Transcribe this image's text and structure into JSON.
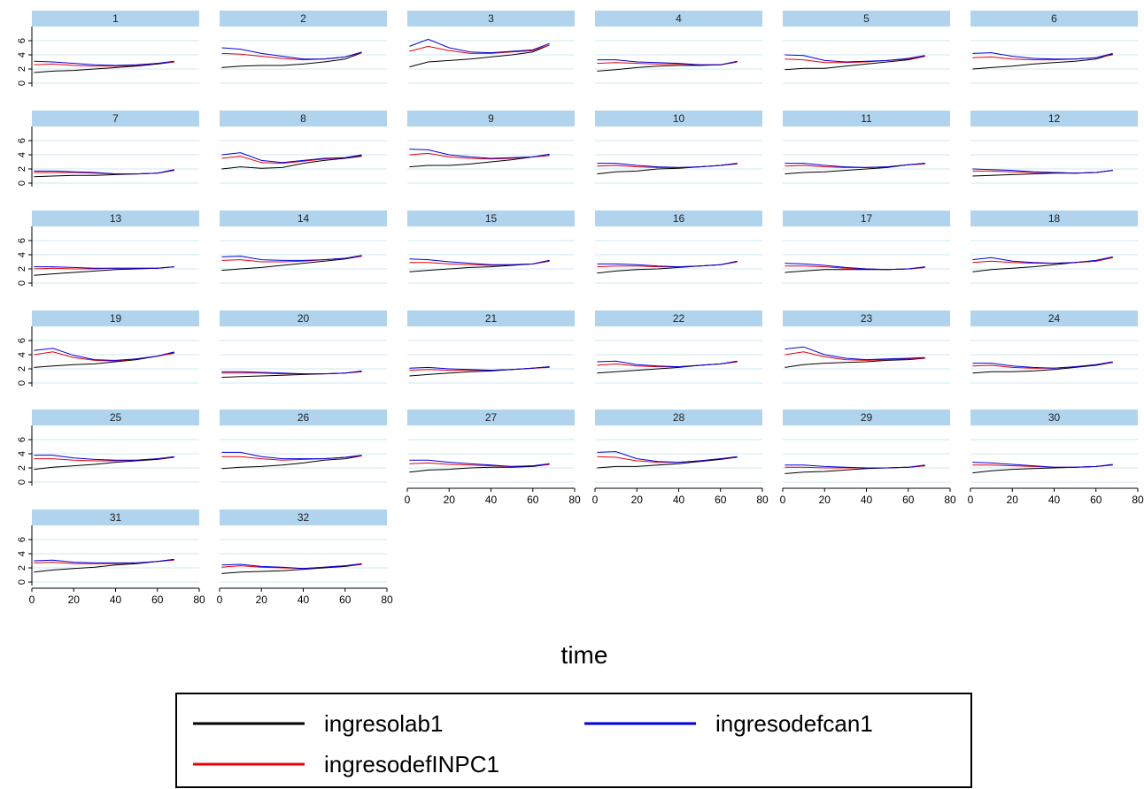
{
  "chart_data": {
    "type": "line",
    "facet_by": "panel",
    "panels": [
      "1",
      "2",
      "3",
      "4",
      "5",
      "6",
      "7",
      "8",
      "9",
      "10",
      "11",
      "12",
      "13",
      "14",
      "15",
      "16",
      "17",
      "18",
      "19",
      "20",
      "21",
      "22",
      "23",
      "24",
      "25",
      "26",
      "27",
      "28",
      "29",
      "30",
      "31",
      "32"
    ],
    "xlabel": "time",
    "xlim": [
      0,
      80
    ],
    "ylim": [
      -0.5,
      8
    ],
    "x_ticks": [
      0,
      20,
      40,
      60,
      80
    ],
    "y_ticks": [
      0,
      2,
      4,
      6
    ],
    "y_tick_labels": [
      "0",
      "2",
      "4",
      "6"
    ],
    "grid": true,
    "legend_position": "bottom",
    "x": [
      1,
      10,
      20,
      30,
      40,
      50,
      60,
      68
    ],
    "series": [
      {
        "name": "ingresolab1",
        "color": "#000000"
      },
      {
        "name": "ingresodefINPC1",
        "color": "#e8000b"
      },
      {
        "name": "ingresodefcan1",
        "color": "#0000dd"
      }
    ],
    "panel_values": {
      "1": {
        "ingresolab1": [
          1.5,
          1.7,
          1.8,
          2.0,
          2.2,
          2.4,
          2.7,
          3.0
        ],
        "ingresodefINPC1": [
          2.6,
          2.7,
          2.5,
          2.4,
          2.4,
          2.5,
          2.8,
          3.0
        ],
        "ingresodefcan1": [
          3.1,
          3.0,
          2.8,
          2.6,
          2.5,
          2.6,
          2.8,
          3.1
        ]
      },
      "2": {
        "ingresolab1": [
          2.2,
          2.4,
          2.5,
          2.5,
          2.7,
          3.0,
          3.4,
          4.3
        ],
        "ingresodefINPC1": [
          4.2,
          4.1,
          3.8,
          3.5,
          3.3,
          3.4,
          3.7,
          4.3
        ],
        "ingresodefcan1": [
          5.0,
          4.8,
          4.2,
          3.8,
          3.4,
          3.4,
          3.7,
          4.4
        ]
      },
      "3": {
        "ingresolab1": [
          2.3,
          3.0,
          3.2,
          3.4,
          3.7,
          4.0,
          4.4,
          5.4
        ],
        "ingresodefINPC1": [
          4.5,
          5.2,
          4.6,
          4.2,
          4.2,
          4.4,
          4.6,
          5.4
        ],
        "ingresodefcan1": [
          5.2,
          6.2,
          5.0,
          4.4,
          4.3,
          4.5,
          4.7,
          5.6
        ]
      },
      "4": {
        "ingresolab1": [
          1.7,
          1.9,
          2.2,
          2.4,
          2.5,
          2.5,
          2.6,
          3.0
        ],
        "ingresodefINPC1": [
          2.8,
          2.9,
          2.8,
          2.7,
          2.7,
          2.6,
          2.6,
          3.0
        ],
        "ingresodefcan1": [
          3.3,
          3.3,
          3.0,
          2.9,
          2.8,
          2.6,
          2.6,
          3.1
        ]
      },
      "5": {
        "ingresolab1": [
          1.9,
          2.1,
          2.1,
          2.4,
          2.7,
          3.0,
          3.3,
          3.8
        ],
        "ingresodefINPC1": [
          3.4,
          3.3,
          2.9,
          2.9,
          3.0,
          3.2,
          3.4,
          3.8
        ],
        "ingresodefcan1": [
          4.0,
          3.9,
          3.2,
          3.0,
          3.1,
          3.2,
          3.5,
          3.9
        ]
      },
      "6": {
        "ingresolab1": [
          2.0,
          2.2,
          2.4,
          2.7,
          2.9,
          3.1,
          3.4,
          4.1
        ],
        "ingresodefINPC1": [
          3.6,
          3.7,
          3.4,
          3.3,
          3.3,
          3.4,
          3.6,
          4.0
        ],
        "ingresodefcan1": [
          4.2,
          4.3,
          3.8,
          3.5,
          3.4,
          3.4,
          3.6,
          4.2
        ]
      },
      "7": {
        "ingresolab1": [
          0.9,
          1.0,
          1.1,
          1.1,
          1.2,
          1.3,
          1.4,
          1.8
        ],
        "ingresodefINPC1": [
          1.5,
          1.5,
          1.5,
          1.4,
          1.3,
          1.3,
          1.4,
          1.8
        ],
        "ingresodefcan1": [
          1.7,
          1.7,
          1.6,
          1.5,
          1.3,
          1.3,
          1.4,
          1.9
        ]
      },
      "8": {
        "ingresolab1": [
          2.0,
          2.3,
          2.1,
          2.2,
          2.8,
          3.2,
          3.5,
          3.8
        ],
        "ingresodefINPC1": [
          3.5,
          3.8,
          2.9,
          2.8,
          3.1,
          3.4,
          3.6,
          3.9
        ],
        "ingresodefcan1": [
          4.0,
          4.3,
          3.2,
          2.9,
          3.2,
          3.5,
          3.6,
          4.0
        ]
      },
      "9": {
        "ingresolab1": [
          2.3,
          2.5,
          2.5,
          2.7,
          3.0,
          3.3,
          3.7,
          3.9
        ],
        "ingresodefINPC1": [
          4.0,
          4.2,
          3.7,
          3.5,
          3.4,
          3.5,
          3.7,
          3.9
        ],
        "ingresodefcan1": [
          4.8,
          4.7,
          4.0,
          3.7,
          3.5,
          3.6,
          3.7,
          4.1
        ]
      },
      "10": {
        "ingresolab1": [
          1.3,
          1.6,
          1.7,
          2.0,
          2.1,
          2.3,
          2.5,
          2.8
        ],
        "ingresodefINPC1": [
          2.4,
          2.5,
          2.3,
          2.2,
          2.2,
          2.3,
          2.5,
          2.7
        ],
        "ingresodefcan1": [
          2.8,
          2.8,
          2.5,
          2.3,
          2.2,
          2.3,
          2.5,
          2.8
        ]
      },
      "11": {
        "ingresolab1": [
          1.3,
          1.5,
          1.6,
          1.8,
          2.0,
          2.2,
          2.6,
          2.8
        ],
        "ingresodefINPC1": [
          2.4,
          2.5,
          2.3,
          2.2,
          2.2,
          2.3,
          2.6,
          2.7
        ],
        "ingresodefcan1": [
          2.8,
          2.8,
          2.5,
          2.3,
          2.2,
          2.3,
          2.6,
          2.8
        ]
      },
      "12": {
        "ingresolab1": [
          1.0,
          1.1,
          1.2,
          1.3,
          1.4,
          1.4,
          1.5,
          1.8
        ],
        "ingresodefINPC1": [
          1.7,
          1.7,
          1.6,
          1.5,
          1.5,
          1.4,
          1.5,
          1.8
        ],
        "ingresodefcan1": [
          2.0,
          1.9,
          1.8,
          1.6,
          1.5,
          1.4,
          1.5,
          1.8
        ]
      },
      "13": {
        "ingresolab1": [
          1.1,
          1.3,
          1.5,
          1.7,
          1.9,
          2.0,
          2.1,
          2.3
        ],
        "ingresodefINPC1": [
          2.0,
          2.1,
          2.0,
          2.0,
          2.1,
          2.1,
          2.1,
          2.3
        ],
        "ingresodefcan1": [
          2.3,
          2.3,
          2.2,
          2.1,
          2.1,
          2.1,
          2.1,
          2.3
        ]
      },
      "14": {
        "ingresolab1": [
          1.8,
          2.0,
          2.2,
          2.5,
          2.8,
          3.1,
          3.4,
          3.8
        ],
        "ingresodefINPC1": [
          3.2,
          3.3,
          3.0,
          3.0,
          3.1,
          3.3,
          3.5,
          3.8
        ],
        "ingresodefcan1": [
          3.7,
          3.8,
          3.3,
          3.2,
          3.2,
          3.3,
          3.5,
          3.9
        ]
      },
      "15": {
        "ingresolab1": [
          1.6,
          1.8,
          2.0,
          2.2,
          2.3,
          2.5,
          2.7,
          3.2
        ],
        "ingresodefINPC1": [
          2.9,
          2.9,
          2.7,
          2.6,
          2.5,
          2.6,
          2.7,
          3.1
        ],
        "ingresodefcan1": [
          3.4,
          3.3,
          3.0,
          2.8,
          2.6,
          2.6,
          2.7,
          3.2
        ]
      },
      "16": {
        "ingresolab1": [
          1.4,
          1.7,
          1.9,
          2.0,
          2.2,
          2.4,
          2.6,
          3.0
        ],
        "ingresodefINPC1": [
          2.3,
          2.4,
          2.4,
          2.3,
          2.3,
          2.4,
          2.6,
          3.0
        ],
        "ingresodefcan1": [
          2.7,
          2.7,
          2.6,
          2.4,
          2.3,
          2.4,
          2.6,
          3.1
        ]
      },
      "17": {
        "ingresolab1": [
          1.5,
          1.7,
          1.9,
          1.9,
          1.9,
          1.9,
          2.0,
          2.2
        ],
        "ingresodefINPC1": [
          2.4,
          2.4,
          2.3,
          2.1,
          2.0,
          1.9,
          2.0,
          2.2
        ],
        "ingresodefcan1": [
          2.8,
          2.7,
          2.5,
          2.2,
          2.0,
          1.9,
          2.0,
          2.3
        ]
      },
      "18": {
        "ingresolab1": [
          1.6,
          1.9,
          2.1,
          2.3,
          2.6,
          2.9,
          3.1,
          3.6
        ],
        "ingresodefINPC1": [
          2.9,
          3.1,
          2.9,
          2.8,
          2.8,
          2.9,
          3.1,
          3.6
        ],
        "ingresodefcan1": [
          3.3,
          3.6,
          3.1,
          2.9,
          2.8,
          2.9,
          3.2,
          3.7
        ]
      },
      "19": {
        "ingresolab1": [
          2.2,
          2.4,
          2.6,
          2.7,
          3.0,
          3.3,
          3.8,
          4.3
        ],
        "ingresodefINPC1": [
          4.0,
          4.4,
          3.6,
          3.2,
          3.1,
          3.4,
          3.8,
          4.2
        ],
        "ingresodefcan1": [
          4.6,
          4.9,
          3.9,
          3.3,
          3.2,
          3.4,
          3.8,
          4.4
        ]
      },
      "20": {
        "ingresolab1": [
          0.8,
          0.9,
          1.0,
          1.1,
          1.2,
          1.3,
          1.4,
          1.6
        ],
        "ingresodefINPC1": [
          1.4,
          1.4,
          1.4,
          1.3,
          1.3,
          1.3,
          1.4,
          1.6
        ],
        "ingresodefcan1": [
          1.6,
          1.6,
          1.5,
          1.4,
          1.3,
          1.3,
          1.4,
          1.7
        ]
      },
      "21": {
        "ingresolab1": [
          1.0,
          1.2,
          1.4,
          1.6,
          1.7,
          1.9,
          2.1,
          2.3
        ],
        "ingresodefINPC1": [
          1.8,
          1.9,
          1.8,
          1.8,
          1.8,
          1.9,
          2.1,
          2.2
        ],
        "ingresodefcan1": [
          2.1,
          2.2,
          2.0,
          1.9,
          1.8,
          1.9,
          2.1,
          2.3
        ]
      },
      "22": {
        "ingresolab1": [
          1.4,
          1.6,
          1.8,
          2.0,
          2.2,
          2.5,
          2.7,
          3.0
        ],
        "ingresodefINPC1": [
          2.5,
          2.7,
          2.4,
          2.3,
          2.3,
          2.5,
          2.7,
          3.0
        ],
        "ingresodefcan1": [
          3.0,
          3.1,
          2.6,
          2.4,
          2.3,
          2.5,
          2.7,
          3.1
        ]
      },
      "23": {
        "ingresolab1": [
          2.2,
          2.6,
          2.8,
          2.9,
          3.0,
          3.2,
          3.3,
          3.5
        ],
        "ingresodefINPC1": [
          4.0,
          4.4,
          3.7,
          3.3,
          3.2,
          3.3,
          3.4,
          3.5
        ],
        "ingresodefcan1": [
          4.8,
          5.1,
          4.0,
          3.5,
          3.3,
          3.4,
          3.5,
          3.6
        ]
      },
      "24": {
        "ingresolab1": [
          1.4,
          1.6,
          1.6,
          1.7,
          1.9,
          2.2,
          2.5,
          2.9
        ],
        "ingresodefINPC1": [
          2.4,
          2.5,
          2.2,
          2.1,
          2.1,
          2.3,
          2.6,
          2.9
        ],
        "ingresodefcan1": [
          2.8,
          2.8,
          2.4,
          2.2,
          2.1,
          2.3,
          2.6,
          3.0
        ]
      },
      "25": {
        "ingresolab1": [
          1.8,
          2.1,
          2.3,
          2.5,
          2.8,
          3.0,
          3.2,
          3.5
        ],
        "ingresodefINPC1": [
          3.3,
          3.3,
          3.1,
          3.0,
          3.0,
          3.1,
          3.3,
          3.5
        ],
        "ingresodefcan1": [
          3.8,
          3.8,
          3.4,
          3.2,
          3.1,
          3.1,
          3.3,
          3.6
        ]
      },
      "26": {
        "ingresolab1": [
          1.9,
          2.1,
          2.2,
          2.4,
          2.7,
          3.1,
          3.3,
          3.7
        ],
        "ingresodefINPC1": [
          3.6,
          3.6,
          3.3,
          3.1,
          3.2,
          3.3,
          3.5,
          3.7
        ],
        "ingresodefcan1": [
          4.2,
          4.2,
          3.6,
          3.3,
          3.3,
          3.3,
          3.5,
          3.8
        ]
      },
      "27": {
        "ingresolab1": [
          1.4,
          1.7,
          1.8,
          2.0,
          2.1,
          2.1,
          2.2,
          2.5
        ],
        "ingresodefINPC1": [
          2.6,
          2.7,
          2.5,
          2.4,
          2.3,
          2.2,
          2.3,
          2.5
        ],
        "ingresodefcan1": [
          3.1,
          3.1,
          2.8,
          2.6,
          2.4,
          2.2,
          2.3,
          2.6
        ]
      },
      "28": {
        "ingresolab1": [
          2.0,
          2.2,
          2.2,
          2.4,
          2.6,
          2.9,
          3.2,
          3.5
        ],
        "ingresodefINPC1": [
          3.6,
          3.5,
          3.0,
          2.8,
          2.8,
          3.0,
          3.3,
          3.5
        ],
        "ingresodefcan1": [
          4.2,
          4.3,
          3.3,
          2.9,
          2.8,
          3.0,
          3.3,
          3.6
        ]
      },
      "29": {
        "ingresolab1": [
          1.2,
          1.4,
          1.5,
          1.7,
          1.9,
          2.0,
          2.1,
          2.3
        ],
        "ingresodefINPC1": [
          2.1,
          2.1,
          2.0,
          2.0,
          2.0,
          2.0,
          2.1,
          2.3
        ],
        "ingresodefcan1": [
          2.4,
          2.4,
          2.2,
          2.1,
          2.0,
          2.0,
          2.1,
          2.4
        ]
      },
      "30": {
        "ingresolab1": [
          1.3,
          1.6,
          1.8,
          1.9,
          2.0,
          2.1,
          2.2,
          2.4
        ],
        "ingresodefINPC1": [
          2.4,
          2.4,
          2.3,
          2.2,
          2.1,
          2.1,
          2.2,
          2.4
        ],
        "ingresodefcan1": [
          2.8,
          2.7,
          2.5,
          2.3,
          2.1,
          2.1,
          2.2,
          2.5
        ]
      },
      "31": {
        "ingresolab1": [
          1.4,
          1.7,
          1.9,
          2.1,
          2.4,
          2.6,
          2.9,
          3.2
        ],
        "ingresodefINPC1": [
          2.7,
          2.8,
          2.6,
          2.6,
          2.6,
          2.7,
          2.9,
          3.1
        ],
        "ingresodefcan1": [
          3.0,
          3.1,
          2.8,
          2.7,
          2.7,
          2.7,
          2.9,
          3.2
        ]
      },
      "32": {
        "ingresolab1": [
          1.2,
          1.4,
          1.5,
          1.6,
          1.8,
          2.0,
          2.2,
          2.5
        ],
        "ingresodefINPC1": [
          2.1,
          2.3,
          2.1,
          2.0,
          1.9,
          2.1,
          2.3,
          2.5
        ],
        "ingresodefcan1": [
          2.4,
          2.5,
          2.2,
          2.1,
          1.9,
          2.1,
          2.3,
          2.6
        ]
      }
    }
  }
}
